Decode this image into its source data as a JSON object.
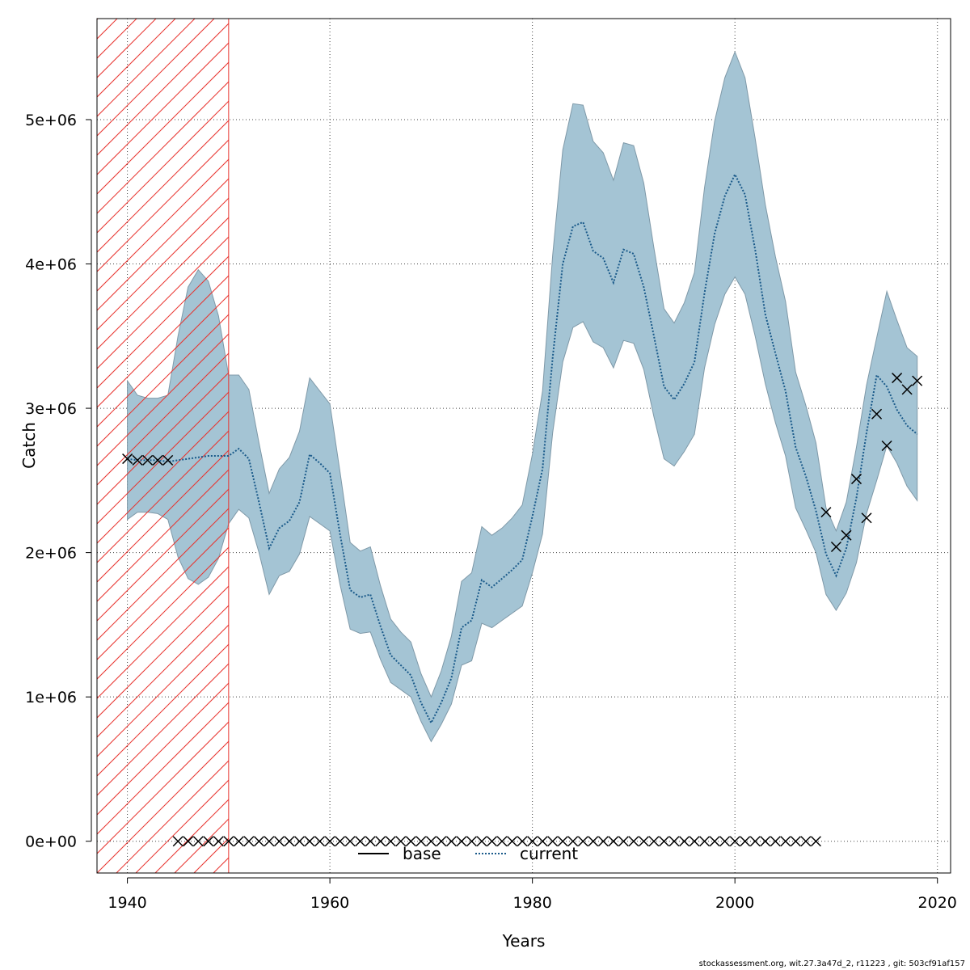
{
  "chart_data": {
    "type": "line",
    "xlabel": "Years",
    "ylabel": "Catch",
    "xlim": [
      1937,
      2021.3
    ],
    "ylim": [
      -220000,
      5700000
    ],
    "x_ticks": [
      1940,
      1960,
      1980,
      2000,
      2020
    ],
    "y_ticks": [
      0,
      1000000,
      2000000,
      3000000,
      4000000,
      5000000
    ],
    "x_tick_labels": [
      "1940",
      "1960",
      "1980",
      "2000",
      "2020"
    ],
    "y_tick_labels": [
      "0e+00",
      "1e+06",
      "2e+06",
      "3e+06",
      "4e+06",
      "5e+06"
    ],
    "grid": true,
    "legend_position": "bottom-center",
    "hatched_region": {
      "x_from": 1937,
      "x_to": 1950,
      "color": "#e8332e"
    },
    "band_color": "#a4c4d4",
    "series": [
      {
        "name": "base",
        "style": "solid",
        "color": "#000000",
        "x": [],
        "values": []
      },
      {
        "name": "current",
        "style": "dotted",
        "color": "#1a5a8a",
        "x": [
          1940,
          1941,
          1942,
          1943,
          1944,
          1945,
          1946,
          1947,
          1948,
          1949,
          1950,
          1951,
          1952,
          1953,
          1954,
          1955,
          1956,
          1957,
          1958,
          1959,
          1960,
          1961,
          1962,
          1963,
          1964,
          1965,
          1966,
          1967,
          1968,
          1969,
          1970,
          1971,
          1972,
          1973,
          1974,
          1975,
          1976,
          1977,
          1978,
          1979,
          1980,
          1981,
          1982,
          1983,
          1984,
          1985,
          1986,
          1987,
          1988,
          1989,
          1990,
          1991,
          1992,
          1993,
          1994,
          1995,
          1996,
          1997,
          1998,
          1999,
          2000,
          2001,
          2002,
          2003,
          2004,
          2005,
          2006,
          2007,
          2008,
          2009,
          2010,
          2011,
          2012,
          2013,
          2014,
          2015,
          2016,
          2017,
          2018
        ],
        "values": [
          2650000,
          2640000,
          2640000,
          2640000,
          2630000,
          2640000,
          2650000,
          2660000,
          2670000,
          2670000,
          2670000,
          2720000,
          2650000,
          2350000,
          2030000,
          2170000,
          2220000,
          2350000,
          2680000,
          2620000,
          2550000,
          2130000,
          1740000,
          1690000,
          1710000,
          1490000,
          1290000,
          1220000,
          1150000,
          960000,
          820000,
          960000,
          1130000,
          1480000,
          1530000,
          1810000,
          1760000,
          1820000,
          1880000,
          1950000,
          2250000,
          2580000,
          3350000,
          4000000,
          4260000,
          4290000,
          4090000,
          4040000,
          3870000,
          4100000,
          4070000,
          3840000,
          3500000,
          3150000,
          3060000,
          3170000,
          3320000,
          3800000,
          4210000,
          4470000,
          4620000,
          4480000,
          4100000,
          3650000,
          3380000,
          3120000,
          2730000,
          2530000,
          2290000,
          1990000,
          1840000,
          2030000,
          2380000,
          2830000,
          3230000,
          3150000,
          2990000,
          2880000,
          2820000
        ]
      }
    ],
    "confidence_band": {
      "x": [
        1940,
        1941,
        1942,
        1943,
        1944,
        1945,
        1946,
        1947,
        1948,
        1949,
        1950,
        1951,
        1952,
        1953,
        1954,
        1955,
        1956,
        1957,
        1958,
        1959,
        1960,
        1961,
        1962,
        1963,
        1964,
        1965,
        1966,
        1967,
        1968,
        1969,
        1970,
        1971,
        1972,
        1973,
        1974,
        1975,
        1976,
        1977,
        1978,
        1979,
        1980,
        1981,
        1982,
        1983,
        1984,
        1985,
        1986,
        1987,
        1988,
        1989,
        1990,
        1991,
        1992,
        1993,
        1994,
        1995,
        1996,
        1997,
        1998,
        1999,
        2000,
        2001,
        2002,
        2003,
        2004,
        2005,
        2006,
        2007,
        2008,
        2009,
        2010,
        2011,
        2012,
        2013,
        2014,
        2015,
        2016,
        2017,
        2018
      ],
      "upper": [
        3190000,
        3090000,
        3070000,
        3070000,
        3090000,
        3500000,
        3840000,
        3960000,
        3880000,
        3640000,
        3230000,
        3230000,
        3130000,
        2760000,
        2410000,
        2580000,
        2660000,
        2840000,
        3210000,
        3120000,
        3030000,
        2560000,
        2070000,
        2010000,
        2040000,
        1770000,
        1540000,
        1450000,
        1380000,
        1160000,
        1000000,
        1180000,
        1420000,
        1800000,
        1860000,
        2180000,
        2120000,
        2170000,
        2240000,
        2330000,
        2680000,
        3120000,
        4060000,
        4790000,
        5110000,
        5100000,
        4850000,
        4770000,
        4580000,
        4840000,
        4820000,
        4560000,
        4110000,
        3690000,
        3590000,
        3730000,
        3940000,
        4530000,
        4990000,
        5290000,
        5470000,
        5290000,
        4870000,
        4410000,
        4050000,
        3740000,
        3250000,
        3020000,
        2760000,
        2310000,
        2150000,
        2350000,
        2730000,
        3160000,
        3490000,
        3810000,
        3610000,
        3420000,
        3360000
      ],
      "lower": [
        2230000,
        2280000,
        2280000,
        2270000,
        2230000,
        1970000,
        1820000,
        1780000,
        1830000,
        1960000,
        2200000,
        2300000,
        2240000,
        2000000,
        1710000,
        1840000,
        1870000,
        1990000,
        2250000,
        2200000,
        2150000,
        1780000,
        1470000,
        1440000,
        1450000,
        1260000,
        1100000,
        1050000,
        1000000,
        830000,
        690000,
        810000,
        950000,
        1220000,
        1250000,
        1510000,
        1480000,
        1530000,
        1580000,
        1630000,
        1860000,
        2130000,
        2830000,
        3320000,
        3560000,
        3600000,
        3460000,
        3420000,
        3280000,
        3470000,
        3450000,
        3270000,
        2940000,
        2650000,
        2600000,
        2700000,
        2820000,
        3280000,
        3580000,
        3790000,
        3910000,
        3790000,
        3500000,
        3170000,
        2900000,
        2670000,
        2310000,
        2160000,
        2000000,
        1710000,
        1600000,
        1720000,
        1930000,
        2270000,
        2500000,
        2740000,
        2620000,
        2460000,
        2360000
      ]
    },
    "observed_points": {
      "marker": "x",
      "x": [
        1940,
        1941,
        1942,
        1943,
        1944,
        2009,
        2010,
        2011,
        2012,
        2013,
        2014,
        2015,
        2016,
        2017,
        2018
      ],
      "values": [
        2650000,
        2640000,
        2640000,
        2640000,
        2640000,
        2280000,
        2040000,
        2120000,
        2510000,
        2240000,
        2960000,
        2740000,
        3210000,
        3130000,
        3190000
      ]
    },
    "zero_catch_points": {
      "marker": "x",
      "x": [
        1945,
        1946,
        1947,
        1948,
        1949,
        1950,
        1951,
        1952,
        1953,
        1954,
        1955,
        1956,
        1957,
        1958,
        1959,
        1960,
        1961,
        1962,
        1963,
        1964,
        1965,
        1966,
        1967,
        1968,
        1969,
        1970,
        1971,
        1972,
        1973,
        1974,
        1975,
        1976,
        1977,
        1978,
        1979,
        1980,
        1981,
        1982,
        1983,
        1984,
        1985,
        1986,
        1987,
        1988,
        1989,
        1990,
        1991,
        1992,
        1993,
        1994,
        1995,
        1996,
        1997,
        1998,
        1999,
        2000,
        2001,
        2002,
        2003,
        2004,
        2005,
        2006,
        2007,
        2008
      ],
      "value": 0
    },
    "legend": [
      "base",
      "current"
    ]
  },
  "footer": "stockassessment.org, wit.27.3a47d_2, r11223 , git: 503cf91af157"
}
